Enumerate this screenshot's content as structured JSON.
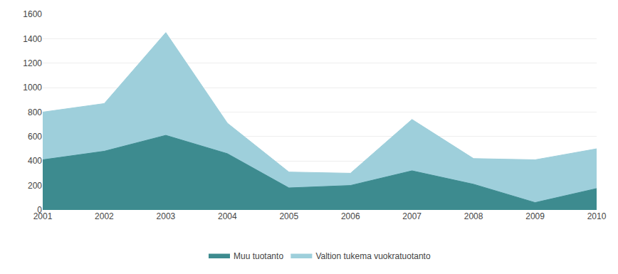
{
  "chart_data": {
    "type": "area",
    "x": [
      2001,
      2002,
      2003,
      2004,
      2005,
      2006,
      2007,
      2008,
      2009,
      2010
    ],
    "series": [
      {
        "name": "Muu tuotanto",
        "color": "#3d8b8f",
        "values": [
          410,
          480,
          610,
          460,
          180,
          200,
          320,
          210,
          60,
          175
        ]
      },
      {
        "name": "Valtion tukema vuokratuotanto",
        "color": "#9ecfdb",
        "values": [
          800,
          870,
          1450,
          710,
          310,
          300,
          740,
          420,
          410,
          500
        ]
      }
    ],
    "xlim": [
      2001,
      2010
    ],
    "xticks": [
      2001,
      2002,
      2003,
      2004,
      2005,
      2006,
      2007,
      2008,
      2009,
      2010
    ],
    "ylim": [
      0,
      1600
    ],
    "yticks": [
      0,
      200,
      400,
      600,
      800,
      1000,
      1200,
      1400,
      1600
    ],
    "grid": true,
    "stacked": false,
    "legend": "bottom"
  }
}
